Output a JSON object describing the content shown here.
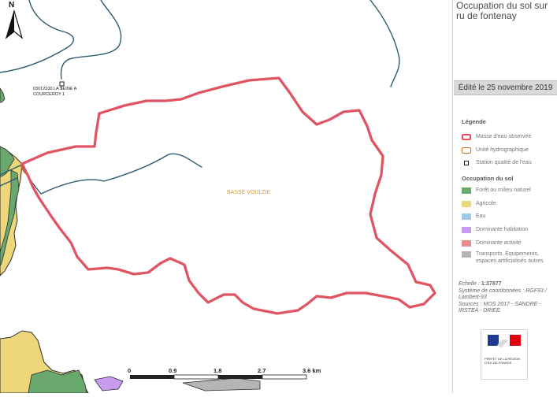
{
  "map": {
    "title": "Occupation du sol sur ru de fontenay",
    "edited": "Édité le 25 novembre 2019",
    "north_label": "N",
    "zone_label": "BASSE VOULZIE",
    "station_label": "03012100 LA SEINE A COURCEROY 1",
    "scale_labels": [
      "0",
      "0.9",
      "1.8",
      "2.7",
      "3.6 km"
    ]
  },
  "legend": {
    "heading": "Légende",
    "items": [
      {
        "label": "Masse d'eau observée",
        "color": "#e8505b",
        "style": "outline-thick"
      },
      {
        "label": "Unité hydrographique",
        "color": "#d8741f",
        "style": "outline"
      },
      {
        "label": "Station qualité de l'eau",
        "color": "#222222",
        "style": "square"
      }
    ],
    "landuse_heading": "Occupation du sol",
    "landuse_items": [
      {
        "label": "Forêt ou milieu naturel",
        "color": "#6aa96e"
      },
      {
        "label": "Agricole",
        "color": "#edd77a"
      },
      {
        "label": "Eau",
        "color": "#9ccbe8"
      },
      {
        "label": "Dominante habitation",
        "color": "#c79bef"
      },
      {
        "label": "Dominante activité",
        "color": "#ef8b8b"
      },
      {
        "label": "Transports, Equipements, espaces artificialisés autres",
        "color": "#b5b5b5"
      }
    ]
  },
  "meta": {
    "scale_label": "Echelle :",
    "scale_value": "1:37877",
    "crs": "Système de coordonnées : RGF93 / Lambert-93",
    "sources": "Sources : MOS 2017 - SANDRE - IRSTEA - DRIEE"
  },
  "logo": {
    "text": "PRÉFET DE LA RÉGION D'ÎLE-DE-FRANCE"
  },
  "colors": {
    "watershed": "#e05563",
    "river": "#2f5a6e",
    "agricole": "#edd77a",
    "foret": "#6aa96e",
    "habitation": "#c79bef",
    "transport": "#b5b5b5",
    "outline": "#2c2c2c"
  }
}
